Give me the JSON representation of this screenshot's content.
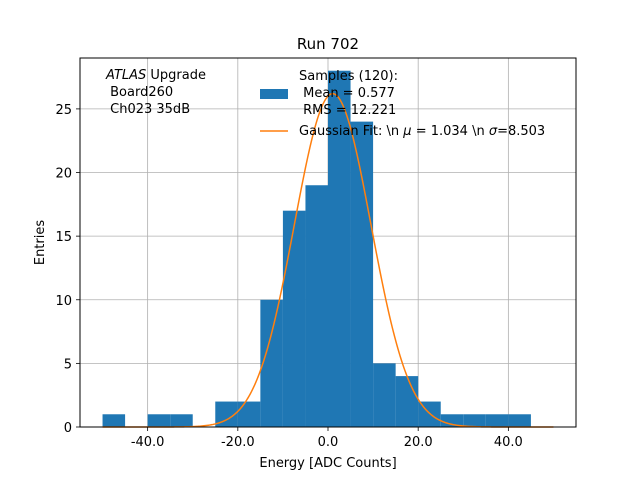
{
  "chart_data": {
    "type": "bar",
    "title": "Run 702",
    "xlabel": "Energy [ADC Counts]",
    "ylabel": "Entries",
    "xlim": [
      -55,
      55
    ],
    "ylim": [
      0,
      29
    ],
    "grid": true,
    "x_ticks": [
      -40,
      -20,
      0,
      20,
      40
    ],
    "x_tick_labels": [
      "-40.0",
      "-20.0",
      "0.0",
      "20.0",
      "40.0"
    ],
    "y_ticks": [
      0,
      5,
      10,
      15,
      20,
      25
    ],
    "y_tick_labels": [
      "0",
      "5",
      "10",
      "15",
      "20",
      "25"
    ],
    "bin_edges": [
      -50,
      -45,
      -40,
      -35,
      -30,
      -25,
      -20,
      -15,
      -10,
      -5,
      0,
      5,
      10,
      15,
      20,
      25,
      30,
      35,
      40,
      45
    ],
    "counts": [
      1,
      0,
      1,
      1,
      0,
      2,
      2,
      10,
      17,
      19,
      28,
      24,
      5,
      4,
      2,
      1,
      1,
      1,
      1
    ],
    "hist_color": "#1f77b4",
    "fit": {
      "mu": 1.034,
      "sigma": 8.503,
      "amplitude": 26.2,
      "color": "#ff7f0e"
    },
    "annotation": {
      "italic": "ATLAS",
      "rest": " Upgrade",
      "line2": " Board260",
      "line3": " Ch023 35dB"
    },
    "legend": {
      "position": "upper-center",
      "hist_label_lines": [
        "Samples (120):",
        " Mean = 0.577",
        " RMS = 12.221"
      ],
      "fit_label_prefix": "Gaussian Fit: \\n ",
      "fit_mu_symbol": "μ",
      "fit_mu_value": " = 1.034 \\n ",
      "fit_sigma_symbol": "σ",
      "fit_sigma_value": "=8.503"
    }
  }
}
